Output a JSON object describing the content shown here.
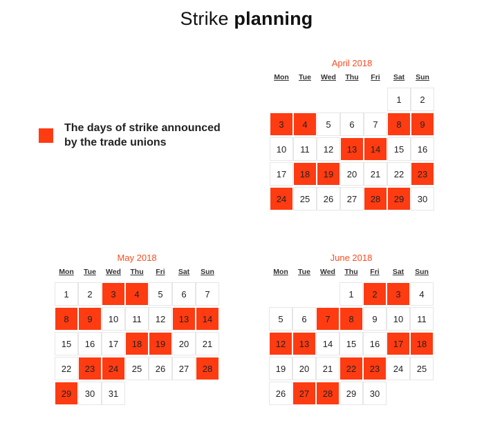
{
  "title": {
    "light": "Strike",
    "bold": "planning"
  },
  "colors": {
    "strike": "#ff3b12",
    "title_month": "#ff4a1f",
    "cell_border": "#e6e6e6"
  },
  "legend": {
    "text_line1": "The days of strike announced",
    "text_line2": "by the trade unions"
  },
  "weekdays": [
    "Mon",
    "Tue",
    "Wed",
    "Thu",
    "Fri",
    "Sat",
    "Sun"
  ],
  "months": [
    {
      "name": "April 2018",
      "first_weekday": 6,
      "days_in_month": 30,
      "strike_days": [
        3,
        4,
        8,
        9,
        13,
        14,
        18,
        19,
        23,
        24,
        28,
        29
      ]
    },
    {
      "name": "May 2018",
      "first_weekday": 1,
      "days_in_month": 31,
      "strike_days": [
        3,
        4,
        8,
        9,
        13,
        14,
        18,
        19,
        23,
        24,
        28,
        29
      ]
    },
    {
      "name": "June 2018",
      "first_weekday": 4,
      "days_in_month": 30,
      "strike_days": [
        2,
        3,
        7,
        8,
        12,
        13,
        17,
        18,
        22,
        23,
        27,
        28
      ]
    }
  ]
}
